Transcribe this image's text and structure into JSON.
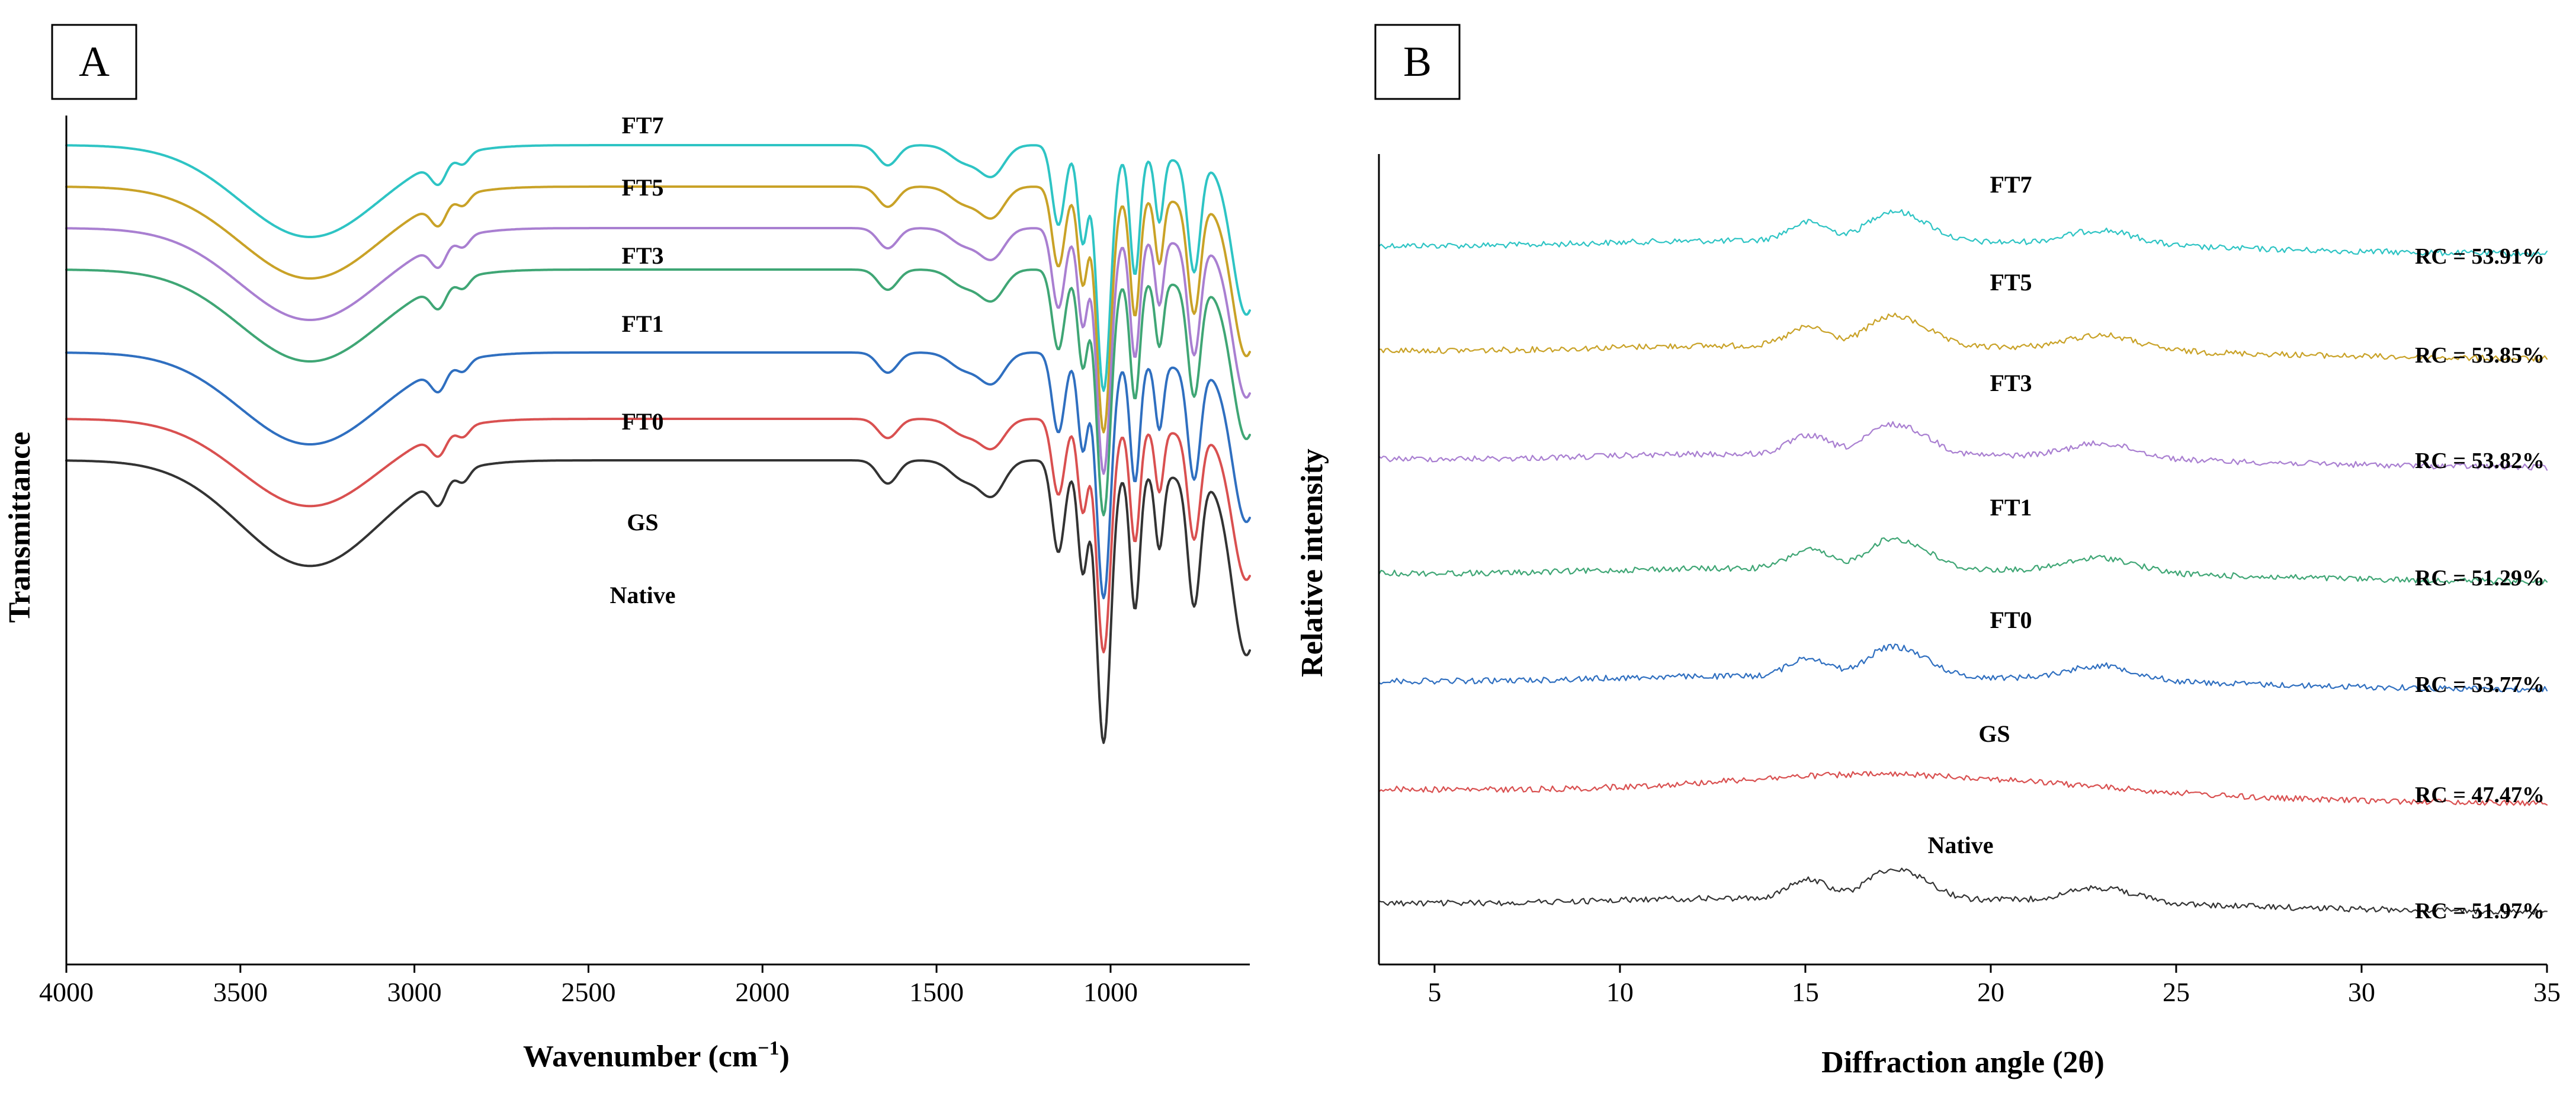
{
  "chart_data": [
    {
      "panel": "A",
      "type": "line",
      "title": "",
      "xlabel": "Wavenumber (cm⁻¹)",
      "xlabel_main": "Wavenumber (cm",
      "xlabel_sup": "−1",
      "xlabel_close": ")",
      "ylabel": "Transmittance",
      "xlim": [
        4000,
        600
      ],
      "x_ticks": [
        4000,
        3500,
        3000,
        2500,
        2000,
        1500,
        1000
      ],
      "y_ticks": [],
      "grid": false,
      "series": [
        {
          "name": "FT7",
          "color": "#2ec4c4",
          "offset": 0.0,
          "depth": 1.0
        },
        {
          "name": "FT5",
          "color": "#c9a227",
          "offset": 0.1,
          "depth": 1.0
        },
        {
          "name": "FT3",
          "color": "#a97fd1",
          "offset": 0.2,
          "depth": 1.0
        },
        {
          "name": "FT1",
          "color": "#3fa675",
          "offset": 0.3,
          "depth": 1.0
        },
        {
          "name": "FT0",
          "color": "#2f6fc0",
          "offset": 0.5,
          "depth": 1.0
        },
        {
          "name": "GS",
          "color": "#d95050",
          "offset": 0.66,
          "depth": 0.95
        },
        {
          "name": "Native",
          "color": "#333333",
          "offset": 0.76,
          "depth": 1.15
        }
      ],
      "bands_cm-1": [
        3300,
        2930,
        1640,
        1150,
        1080,
        1020,
        930,
        860,
        760
      ]
    },
    {
      "panel": "B",
      "type": "line",
      "title": "",
      "xlabel": "Diffraction angle (2θ)",
      "ylabel": "Relative intensity",
      "xlim": [
        3.5,
        35
      ],
      "x_ticks": [
        5,
        10,
        15,
        20,
        25,
        30,
        35
      ],
      "y_ticks": [],
      "grid": false,
      "series": [
        {
          "name": "FT7",
          "color": "#2ec4c4",
          "rc": "RC = 53.91%",
          "peaks_2theta": [
            15.1,
            17.1,
            18.0,
            23.0
          ]
        },
        {
          "name": "FT5",
          "color": "#c9a227",
          "rc": "RC = 53.85%",
          "peaks_2theta": [
            15.1,
            17.1,
            18.0,
            23.0
          ]
        },
        {
          "name": "FT3",
          "color": "#a97fd1",
          "rc": "RC = 53.82%",
          "peaks_2theta": [
            15.1,
            17.1,
            18.0,
            23.0
          ]
        },
        {
          "name": "FT1",
          "color": "#3fa675",
          "rc": "RC = 51.29%",
          "peaks_2theta": [
            15.1,
            17.1,
            18.0,
            23.0
          ]
        },
        {
          "name": "FT0",
          "color": "#2f6fc0",
          "rc": "RC = 53.77%",
          "peaks_2theta": [
            15.1,
            17.1,
            18.0,
            23.0
          ]
        },
        {
          "name": "GS",
          "color": "#d95050",
          "rc": "RC = 47.47%",
          "peaks_2theta": [
            17.0
          ]
        },
        {
          "name": "Native",
          "color": "#333333",
          "rc": "RC = 51.97%",
          "peaks_2theta": [
            15.1,
            17.1,
            18.0,
            23.0
          ]
        }
      ]
    }
  ]
}
